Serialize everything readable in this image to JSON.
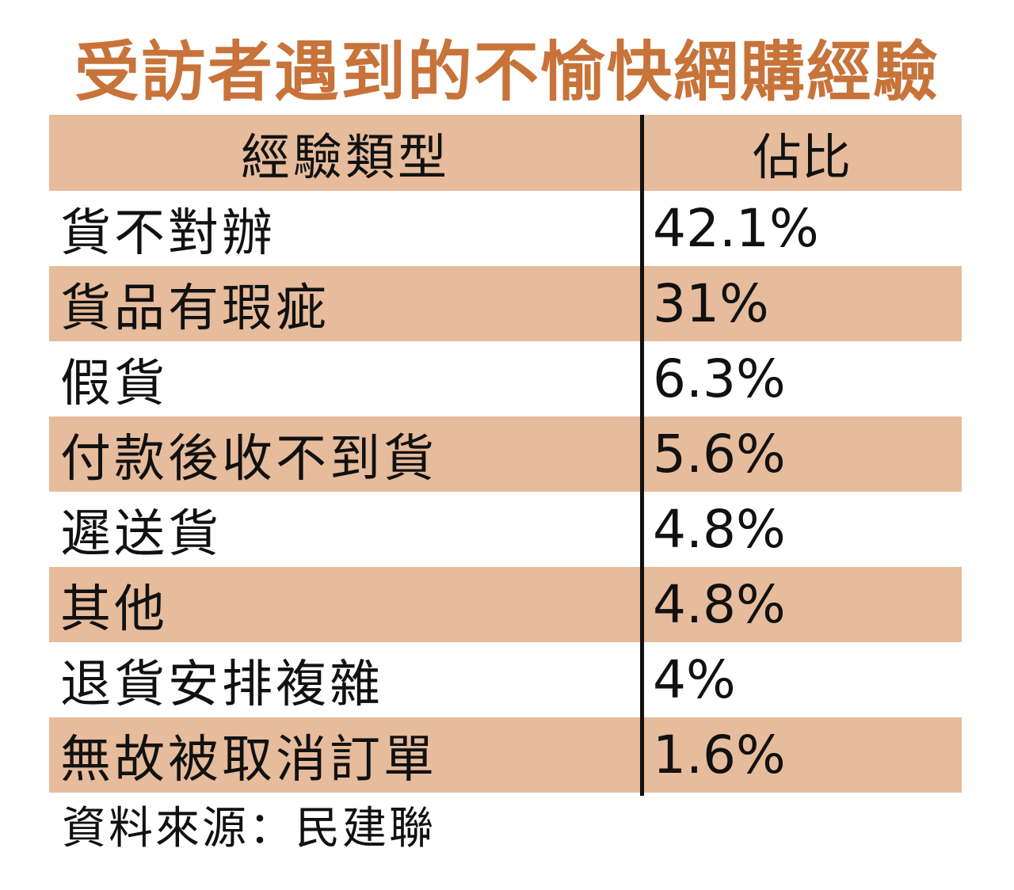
{
  "colors": {
    "title": "#c8733a",
    "shade": "#e6bc9c",
    "divider": "#111111",
    "text": "#111111"
  },
  "chart_data": {
    "type": "table",
    "title": "受訪者遇到的不愉快網購經驗",
    "columns": [
      "經驗類型",
      "佔比"
    ],
    "rows": [
      {
        "category": "貨不對辦",
        "share_label": "42.1%",
        "value": 42.1
      },
      {
        "category": "貨品有瑕疵",
        "share_label": "31%",
        "value": 31
      },
      {
        "category": "假貨",
        "share_label": "6.3%",
        "value": 6.3
      },
      {
        "category": "付款後收不到貨",
        "share_label": "5.6%",
        "value": 5.6
      },
      {
        "category": "遲送貨",
        "share_label": "4.8%",
        "value": 4.8
      },
      {
        "category": "其他",
        "share_label": "4.8%",
        "value": 4.8
      },
      {
        "category": "退貨安排複雜",
        "share_label": "4%",
        "value": 4
      },
      {
        "category": "無故被取消訂單",
        "share_label": "1.6%",
        "value": 1.6
      }
    ],
    "source": "資料來源：民建聯"
  }
}
